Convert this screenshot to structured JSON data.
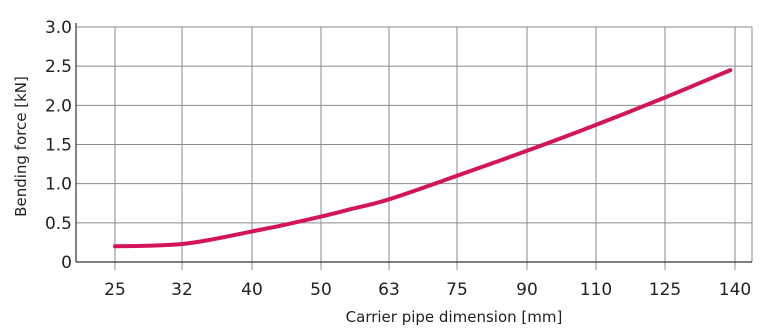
{
  "chart_data": {
    "type": "line",
    "title": "",
    "xlabel": "Carrier pipe dimension [mm]",
    "ylabel": "Bending force [kN]",
    "categories": [
      "25",
      "32",
      "40",
      "50",
      "63",
      "75",
      "90",
      "110",
      "125",
      "140"
    ],
    "yticks": [
      "0",
      "0.5",
      "1.0",
      "1.5",
      "2.0",
      "2.5",
      "3.0"
    ],
    "ylim": [
      0,
      3.0
    ],
    "grid": true,
    "series": [
      {
        "color": "#d4145a",
        "points": [
          {
            "x": 25,
            "y": 0.2
          },
          {
            "x": 29,
            "y": 0.21
          },
          {
            "x": 32,
            "y": 0.23
          },
          {
            "x": 35,
            "y": 0.28
          },
          {
            "x": 40,
            "y": 0.39
          },
          {
            "x": 45,
            "y": 0.48
          },
          {
            "x": 50,
            "y": 0.58
          },
          {
            "x": 56,
            "y": 0.68
          },
          {
            "x": 63,
            "y": 0.8
          },
          {
            "x": 75,
            "y": 1.1
          },
          {
            "x": 90,
            "y": 1.42
          },
          {
            "x": 110,
            "y": 1.75
          },
          {
            "x": 125,
            "y": 2.1
          },
          {
            "x": 139,
            "y": 2.45
          }
        ]
      }
    ]
  }
}
